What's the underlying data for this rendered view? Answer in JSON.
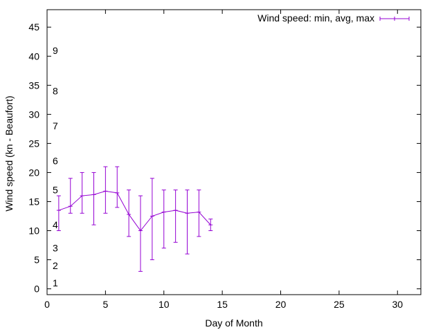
{
  "chart_data": {
    "type": "line",
    "xlabel": "Day of Month",
    "ylabel": "Wind speed (kn - Beaufort)",
    "xlim": [
      0,
      32
    ],
    "ylim": [
      -1,
      48
    ],
    "xticks": [
      "0",
      "5",
      "10",
      "15",
      "20",
      "25",
      "30"
    ],
    "yticks": [
      "0",
      "5",
      "10",
      "15",
      "20",
      "25",
      "30",
      "35",
      "40",
      "45"
    ],
    "grid": false,
    "legend_position": "top-right",
    "beaufort_labels": [
      {
        "label": "1",
        "y": 1
      },
      {
        "label": "2",
        "y": 4
      },
      {
        "label": "3",
        "y": 7
      },
      {
        "label": "4",
        "y": 11
      },
      {
        "label": "5",
        "y": 17
      },
      {
        "label": "6",
        "y": 22
      },
      {
        "label": "7",
        "y": 28
      },
      {
        "label": "8",
        "y": 34
      },
      {
        "label": "9",
        "y": 41
      }
    ],
    "series": [
      {
        "name": "Wind speed: min, avg, max",
        "color": "#9400d3",
        "x": [
          1,
          2,
          3,
          4,
          5,
          6,
          7,
          8,
          9,
          10,
          11,
          12,
          13,
          14
        ],
        "avg": [
          13.5,
          14.2,
          16.0,
          16.2,
          16.8,
          16.5,
          12.8,
          10.0,
          12.5,
          13.2,
          13.5,
          13.0,
          13.2,
          11.0
        ],
        "min": [
          10,
          13,
          13,
          11,
          13,
          14,
          9,
          3,
          5,
          7,
          8,
          6,
          9,
          10
        ],
        "max": [
          16,
          19,
          20,
          20,
          21,
          21,
          17,
          16,
          19,
          17,
          17,
          17,
          17,
          12
        ]
      }
    ]
  }
}
